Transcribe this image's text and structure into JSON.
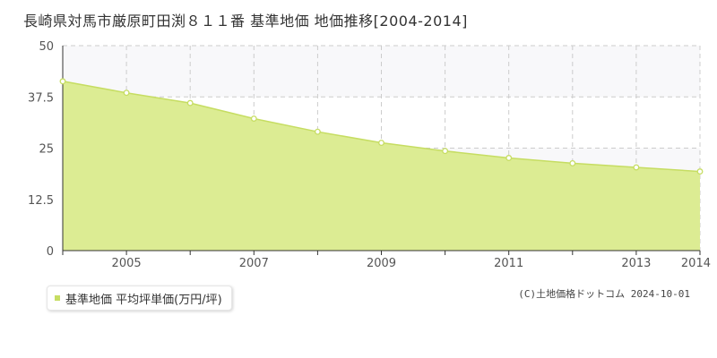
{
  "colors": {
    "area_fill": "#dcec93",
    "line": "#c6dd62",
    "marker_fill": "#ffffff",
    "grid": "#cccccc",
    "band": "#f8f8fa",
    "axis": "#333333"
  },
  "legend": {
    "label": "基準地価 平均坪単価(万円/坪)",
    "position": "bottom-left"
  },
  "credit": "(C)土地価格ドットコム 2024-10-01",
  "chart_data": {
    "type": "area",
    "title": "長崎県対馬市厳原町田渕８１１番 基準地価 地価推移[2004-2014]",
    "xlabel": "",
    "ylabel": "",
    "x": [
      2004,
      2005,
      2006,
      2007,
      2008,
      2009,
      2010,
      2011,
      2012,
      2013,
      2014
    ],
    "series": [
      {
        "name": "基準地価 平均坪単価(万円/坪)",
        "values": [
          41.3,
          38.5,
          36.0,
          32.2,
          29.0,
          26.3,
          24.3,
          22.6,
          21.3,
          20.3,
          19.3
        ]
      }
    ],
    "ylim": [
      0,
      50
    ],
    "xlim": [
      2004,
      2014
    ],
    "y_ticks": [
      "0",
      "12.5",
      "25",
      "37.5",
      "50"
    ],
    "y_tick_values": [
      0,
      12.5,
      25,
      37.5,
      50
    ],
    "x_ticks": [
      "2005",
      "2007",
      "2009",
      "2011",
      "2013",
      "2014"
    ],
    "x_tick_values": [
      2005,
      2007,
      2009,
      2011,
      2013,
      2014
    ],
    "grid": true,
    "legend_position": "bottom-left"
  }
}
